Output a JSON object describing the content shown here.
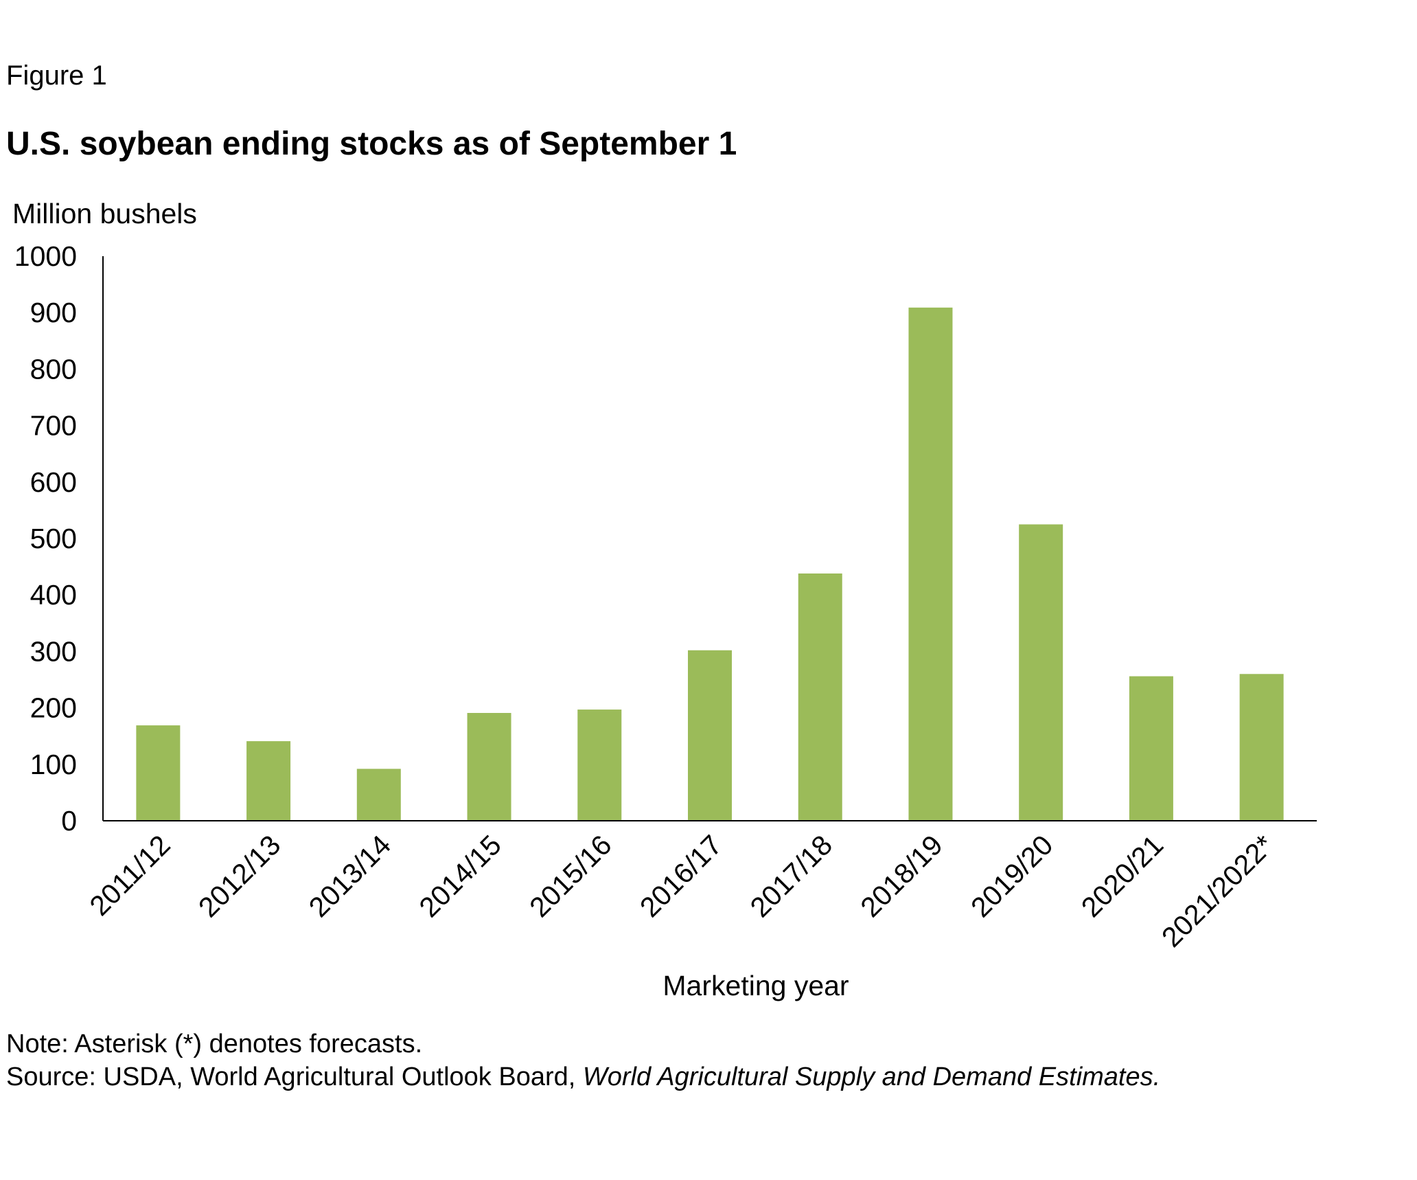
{
  "figure_label": "Figure 1",
  "colors": {
    "bar": "#9bbb59",
    "axis": "#000000",
    "background": "#ffffff"
  },
  "footer": {
    "note": "Note: Asterisk (*) denotes forecasts.",
    "source_prefix": "Source: USDA, World Agricultural Outlook Board, ",
    "source_title": "World Agricultural Supply and Demand Estimates."
  },
  "chart_data": {
    "type": "bar",
    "title": "U.S. soybean ending stocks as of September 1",
    "ylabel": "Million bushels",
    "xlabel": "Marketing year",
    "ylim": [
      0,
      1000
    ],
    "yticks": [
      0,
      100,
      200,
      300,
      400,
      500,
      600,
      700,
      800,
      900,
      1000
    ],
    "grid": false,
    "legend": "none",
    "categories": [
      "2011/12",
      "2012/13",
      "2013/14",
      "2014/15",
      "2015/16",
      "2016/17",
      "2017/18",
      "2018/19",
      "2019/20",
      "2020/21",
      "2021/2022*"
    ],
    "values": [
      169,
      141,
      92,
      191,
      197,
      302,
      438,
      909,
      525,
      256,
      260
    ]
  }
}
